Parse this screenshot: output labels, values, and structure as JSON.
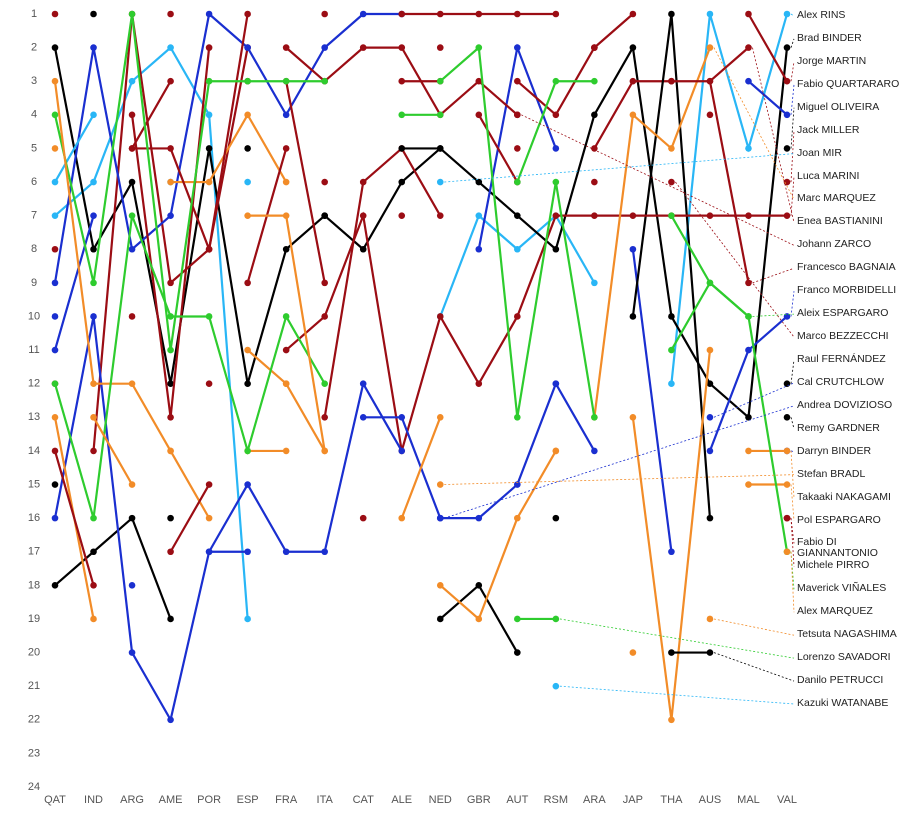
{
  "chart_data": {
    "type": "bump",
    "categories": [
      "QAT",
      "IND",
      "ARG",
      "AME",
      "POR",
      "ESP",
      "FRA",
      "ITA",
      "CAT",
      "ALE",
      "NED",
      "GBR",
      "AUT",
      "RSM",
      "ARA",
      "JAP",
      "THA",
      "AUS",
      "MAL",
      "VAL"
    ],
    "ylim": [
      1,
      24
    ],
    "inverted": true,
    "yticks": [
      1,
      2,
      3,
      4,
      5,
      6,
      7,
      8,
      9,
      10,
      11,
      12,
      13,
      14,
      15,
      16,
      17,
      18,
      19,
      20,
      21,
      22,
      23,
      24
    ],
    "series": [
      {
        "name": "Alex RINS",
        "color": "#29b6f6",
        "values": [
          7,
          6,
          3,
          2,
          4,
          19,
          null,
          null,
          null,
          null,
          10,
          7,
          8,
          7,
          9,
          null,
          12,
          1,
          5,
          1
        ]
      },
      {
        "name": "Brad BINDER",
        "color": "#000000",
        "values": [
          2,
          8,
          6,
          12,
          5,
          12,
          8,
          7,
          8,
          6,
          5,
          6,
          7,
          8,
          4,
          2,
          10,
          12,
          13,
          2
        ]
      },
      {
        "name": "Jorge MARTIN",
        "color": "#9b0d14",
        "values": [
          null,
          14,
          1,
          9,
          8,
          2,
          null,
          13,
          6,
          5,
          7,
          null,
          4,
          null,
          5,
          3,
          3,
          null,
          1,
          3
        ]
      },
      {
        "name": "Fabio QUARTARARO",
        "color": "#1a2fd0",
        "values": [
          9,
          2,
          8,
          7,
          1,
          2,
          4,
          2,
          1,
          1,
          null,
          8,
          2,
          5,
          null,
          8,
          17,
          null,
          3,
          4
        ]
      },
      {
        "name": "Miguel OLIVEIRA",
        "color": "#000000",
        "values": [
          null,
          1,
          null,
          16,
          null,
          5,
          null,
          7,
          null,
          5,
          5,
          null,
          null,
          16,
          null,
          10,
          1,
          16,
          null,
          5
        ]
      },
      {
        "name": "Jack MILLER",
        "color": "#9b0d14",
        "values": [
          null,
          null,
          5,
          3,
          null,
          3,
          null,
          6,
          null,
          3,
          3,
          null,
          3,
          4,
          2,
          1,
          null,
          4,
          null,
          6
        ]
      },
      {
        "name": "Joan MIR",
        "color": "#29b6f6",
        "values": [
          6,
          4,
          null,
          6,
          null,
          6,
          null,
          null,
          null,
          null,
          6,
          null,
          null,
          null,
          null,
          null,
          null,
          null,
          null,
          null
        ]
      },
      {
        "name": "Luca MARINI",
        "color": "#9b0d14",
        "values": [
          12,
          null,
          10,
          null,
          12,
          null,
          11,
          10,
          7,
          14,
          10,
          12,
          10,
          7,
          7,
          7,
          7,
          7,
          7,
          7
        ]
      },
      {
        "name": "Marc MARQUEZ",
        "color": "#f28c28",
        "values": [
          5,
          null,
          null,
          6,
          6,
          4,
          6,
          null,
          null,
          null,
          null,
          null,
          null,
          null,
          13,
          4,
          5,
          2,
          null,
          null
        ]
      },
      {
        "name": "Enea BASTIANINI",
        "color": "#9b0d14",
        "values": [
          1,
          null,
          null,
          1,
          null,
          null,
          3,
          9,
          null,
          7,
          null,
          4,
          6,
          null,
          2,
          null,
          null,
          3,
          2,
          null
        ]
      },
      {
        "name": "Johann ZARCO",
        "color": "#9b0d14",
        "values": [
          8,
          null,
          4,
          13,
          2,
          null,
          2,
          3,
          2,
          2,
          4,
          3,
          4,
          null,
          null,
          null,
          null,
          null,
          null,
          null
        ]
      },
      {
        "name": "Francesco BAGNAIA",
        "color": "#9b0d14",
        "values": [
          null,
          null,
          5,
          5,
          8,
          1,
          null,
          1,
          null,
          1,
          1,
          1,
          1,
          1,
          null,
          null,
          3,
          3,
          9,
          null
        ]
      },
      {
        "name": "Franco MORBIDELLI",
        "color": "#1a2fd0",
        "values": [
          11,
          7,
          null,
          null,
          null,
          null,
          null,
          null,
          13,
          13,
          16,
          16,
          15,
          12,
          14,
          null,
          null,
          14,
          11,
          10
        ]
      },
      {
        "name": "Aleix ESPARGARO",
        "color": "#2ecc2e",
        "values": [
          4,
          9,
          1,
          11,
          3,
          3,
          3,
          3,
          null,
          4,
          4,
          null,
          6,
          3,
          3,
          null,
          11,
          9,
          10,
          null
        ]
      },
      {
        "name": "Marco BEZZECCHI",
        "color": "#9b0d14",
        "values": [
          null,
          null,
          null,
          null,
          null,
          9,
          5,
          null,
          null,
          null,
          2,
          null,
          5,
          null,
          6,
          null,
          6,
          null,
          null,
          null
        ]
      },
      {
        "name": "Raul FERNÁNDEZ",
        "color": "#000000",
        "values": [
          18,
          17,
          16,
          19,
          null,
          null,
          null,
          null,
          null,
          null,
          19,
          18,
          20,
          null,
          null,
          null,
          null,
          null,
          null,
          12
        ]
      },
      {
        "name": "Cal CRUTCHLOW",
        "color": "#1a2fd0",
        "values": [
          null,
          null,
          null,
          null,
          null,
          null,
          null,
          null,
          null,
          null,
          null,
          null,
          null,
          12,
          null,
          null,
          null,
          13,
          null,
          null
        ]
      },
      {
        "name": "Andrea DOVIZIOSO",
        "color": "#1a2fd0",
        "values": [
          10,
          null,
          18,
          null,
          17,
          17,
          null,
          null,
          null,
          null,
          16,
          null,
          null,
          null,
          null,
          null,
          null,
          null,
          null,
          null
        ]
      },
      {
        "name": "Remy GARDNER",
        "color": "#000000",
        "values": [
          15,
          null,
          null,
          null,
          null,
          null,
          null,
          null,
          null,
          null,
          null,
          null,
          null,
          null,
          null,
          null,
          null,
          null,
          null,
          13
        ]
      },
      {
        "name": "Darryn BINDER",
        "color": "#1a2fd0",
        "values": [
          16,
          10,
          20,
          22,
          17,
          15,
          17,
          17,
          12,
          14,
          null,
          null,
          null,
          null,
          null,
          null,
          null,
          null,
          null,
          14
        ]
      },
      {
        "name": "Stefan BRADL",
        "color": "#f28c28",
        "values": [
          null,
          null,
          null,
          null,
          null,
          14,
          14,
          null,
          null,
          null,
          15,
          null,
          null,
          null,
          null,
          null,
          null,
          null,
          null,
          null
        ]
      },
      {
        "name": "Takaaki NAKAGAMI",
        "color": "#f28c28",
        "values": [
          13,
          19,
          null,
          14,
          null,
          11,
          12,
          14,
          null,
          null,
          null,
          null,
          null,
          14,
          null,
          null,
          null,
          null,
          14,
          14
        ]
      },
      {
        "name": "Pol ESPARGARO",
        "color": "#f28c28",
        "values": [
          3,
          12,
          12,
          14,
          16,
          null,
          12,
          null,
          null,
          16,
          13,
          null,
          null,
          null,
          null,
          null,
          null,
          null,
          15,
          15
        ]
      },
      {
        "name": "Fabio DI GIANNANTONIO",
        "color": "#9b0d14",
        "values": [
          14,
          18,
          null,
          17,
          15,
          null,
          null,
          null,
          16,
          null,
          null,
          null,
          null,
          null,
          null,
          null,
          null,
          null,
          null,
          16
        ]
      },
      {
        "name": "Michele PIRRO",
        "color": "#9b0d14",
        "values": [
          null,
          null,
          null,
          null,
          null,
          null,
          null,
          null,
          null,
          null,
          null,
          null,
          null,
          null,
          null,
          null,
          null,
          null,
          null,
          16
        ]
      },
      {
        "name": "Maverick VIÑALES",
        "color": "#2ecc2e",
        "values": [
          12,
          16,
          7,
          10,
          10,
          14,
          10,
          12,
          null,
          null,
          3,
          2,
          13,
          6,
          13,
          null,
          7,
          9,
          10,
          17
        ]
      },
      {
        "name": "Alex MARQUEZ",
        "color": "#f28c28",
        "values": [
          null,
          13,
          15,
          null,
          null,
          7,
          7,
          14,
          null,
          null,
          18,
          19,
          16,
          14,
          null,
          13,
          22,
          11,
          null,
          17
        ]
      },
      {
        "name": "Tetsuta NAGASHIMA",
        "color": "#f28c28",
        "values": [
          null,
          null,
          null,
          null,
          null,
          null,
          null,
          null,
          null,
          null,
          null,
          null,
          null,
          null,
          null,
          20,
          null,
          19,
          null,
          null
        ]
      },
      {
        "name": "Lorenzo SAVADORI",
        "color": "#2ecc2e",
        "values": [
          null,
          null,
          null,
          null,
          null,
          null,
          null,
          null,
          null,
          null,
          null,
          null,
          19,
          19,
          null,
          null,
          null,
          null,
          null,
          null
        ]
      },
      {
        "name": "Danilo PETRUCCI",
        "color": "#000000",
        "values": [
          null,
          null,
          null,
          null,
          null,
          null,
          null,
          null,
          null,
          null,
          null,
          null,
          null,
          null,
          null,
          null,
          20,
          20,
          null,
          null
        ]
      },
      {
        "name": "Kazuki WATANABE",
        "color": "#29b6f6",
        "values": [
          null,
          null,
          null,
          null,
          null,
          null,
          null,
          null,
          null,
          null,
          null,
          null,
          null,
          21,
          null,
          null,
          null,
          null,
          null,
          null
        ]
      }
    ]
  }
}
